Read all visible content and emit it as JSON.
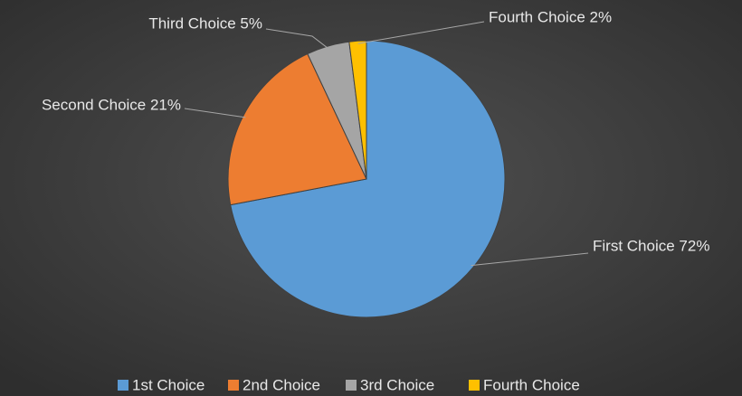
{
  "chart_data": {
    "type": "pie",
    "categories": [
      "1st Choice",
      "2nd Choice",
      "3rd Choice",
      "Fourth Choice"
    ],
    "values": [
      72,
      21,
      5,
      2
    ],
    "value_labels": [
      "First Choice 72%",
      "Second Choice 21%",
      "Third Choice 5%",
      "Fourth Choice 2%"
    ],
    "colors": [
      "#5b9bd5",
      "#ed7d31",
      "#a5a5a5",
      "#ffc000"
    ],
    "legend": "bottom"
  }
}
